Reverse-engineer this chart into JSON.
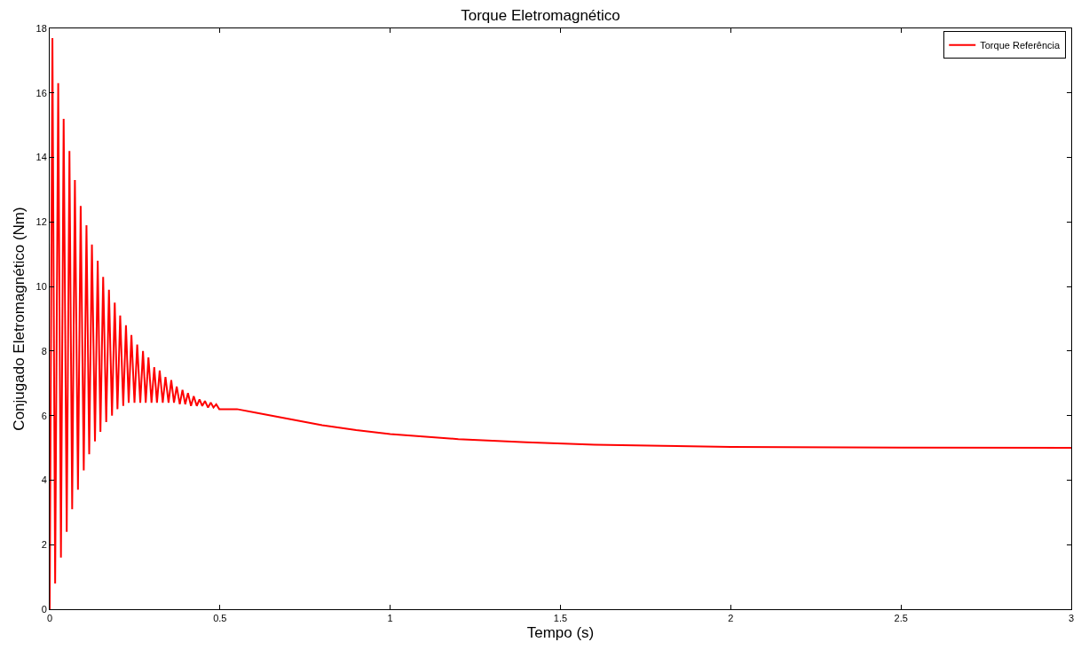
{
  "chart_data": {
    "type": "line",
    "title": "Torque Eletromagnético",
    "xlabel": "Tempo (s)",
    "ylabel": "Conjugado Eletromagnético (Nm)",
    "xlim": [
      0,
      3
    ],
    "xticks": [
      0,
      0.5,
      1,
      1.5,
      2,
      2.5,
      3
    ],
    "ylim": [
      0,
      18
    ],
    "yticks": [
      0,
      2,
      4,
      6,
      8,
      10,
      12,
      14,
      16,
      18
    ],
    "legend": "top right",
    "marker": "none",
    "line_style": "solid",
    "series": [
      {
        "name": "Torque Referência",
        "color": "#ff0000",
        "x": [
          0,
          0.008,
          0.016,
          0.025,
          0.033,
          0.041,
          0.05,
          0.058,
          0.066,
          0.074,
          0.083,
          0.091,
          0.1,
          0.108,
          0.116,
          0.124,
          0.133,
          0.141,
          0.149,
          0.157,
          0.166,
          0.174,
          0.183,
          0.191,
          0.199,
          0.207,
          0.216,
          0.224,
          0.232,
          0.24,
          0.249,
          0.257,
          0.266,
          0.274,
          0.282,
          0.29,
          0.299,
          0.307,
          0.315,
          0.323,
          0.332,
          0.34,
          0.349,
          0.357,
          0.365,
          0.373,
          0.382,
          0.39,
          0.398,
          0.406,
          0.415,
          0.423,
          0.432,
          0.44,
          0.448,
          0.456,
          0.465,
          0.473,
          0.481,
          0.489,
          0.498,
          0.55,
          0.6,
          0.7,
          0.8,
          0.9,
          1.0,
          1.2,
          1.4,
          1.6,
          1.8,
          2.0,
          2.5,
          3.0
        ],
        "values": [
          0,
          17.7,
          0.8,
          16.3,
          1.6,
          15.2,
          2.4,
          14.2,
          3.1,
          13.3,
          3.7,
          12.5,
          4.3,
          11.9,
          4.8,
          11.3,
          5.2,
          10.8,
          5.5,
          10.3,
          5.8,
          9.9,
          6.0,
          9.5,
          6.2,
          9.1,
          6.3,
          8.8,
          6.4,
          8.5,
          6.4,
          8.2,
          6.4,
          8.0,
          6.4,
          7.8,
          6.4,
          7.5,
          6.4,
          7.4,
          6.4,
          7.2,
          6.4,
          7.1,
          6.4,
          6.9,
          6.35,
          6.8,
          6.35,
          6.7,
          6.3,
          6.6,
          6.3,
          6.5,
          6.3,
          6.45,
          6.25,
          6.4,
          6.25,
          6.35,
          6.2,
          6.2,
          6.1,
          5.9,
          5.7,
          5.55,
          5.43,
          5.27,
          5.17,
          5.1,
          5.06,
          5.03,
          5.01,
          5.0
        ]
      }
    ]
  }
}
